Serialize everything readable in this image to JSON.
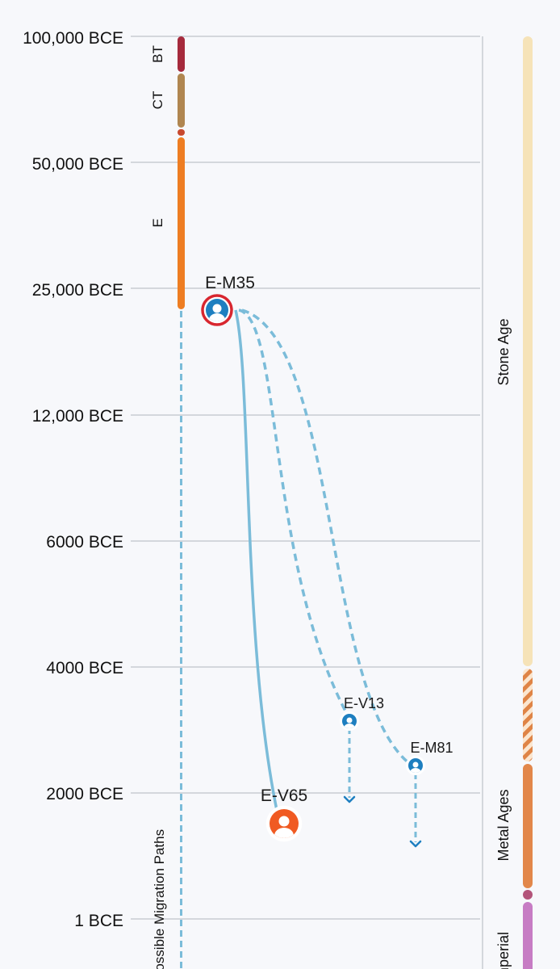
{
  "time_axis": {
    "ticks": [
      "100,000 BCE",
      "50,000 BCE",
      "25,000 BCE",
      "12,000 BCE",
      "6000 BCE",
      "4000 BCE",
      "2000 BCE",
      "1 BCE"
    ]
  },
  "lineage_bands": [
    {
      "label": "BT",
      "color": "#a52a3c"
    },
    {
      "label": "CT",
      "color": "#b08650"
    },
    {
      "label": "",
      "color": "#c8492e"
    },
    {
      "label": "E",
      "color": "#ee7d22"
    }
  ],
  "migration_paths_label": "Possible Migration Paths",
  "haplogroups": [
    {
      "id": "E-M35",
      "color": "#1e7fc0",
      "ring": "#d8262f",
      "highlighted": true
    },
    {
      "id": "E-V65",
      "color": "#f05a22",
      "ring": "#ffffff",
      "highlighted": true
    },
    {
      "id": "E-V13",
      "color": "#1e7fc0",
      "ring": "#ffffff",
      "highlighted": false
    },
    {
      "id": "E-M81",
      "color": "#1e7fc0",
      "ring": "#ffffff",
      "highlighted": false
    }
  ],
  "paths": [
    {
      "from": "E-M35",
      "to": "E-V65",
      "style": "solid"
    },
    {
      "from": "E-M35",
      "to": "E-V13",
      "style": "dashed"
    },
    {
      "from": "E-M35",
      "to": "E-M81",
      "style": "dashed"
    }
  ],
  "eras": [
    {
      "label": "Stone Age",
      "color": "#f6e3b8"
    },
    {
      "label": "",
      "color": "#e08a4a",
      "pattern": "striped"
    },
    {
      "label": "Metal Ages",
      "color": "#e2874a"
    },
    {
      "label": "",
      "color": "#b3547a"
    },
    {
      "label": "Imperial",
      "color": "#c77cc4"
    }
  ],
  "colors": {
    "gridline": "#c9ccd2",
    "path": "#7bbcd9",
    "background": "#f7f8fb"
  }
}
